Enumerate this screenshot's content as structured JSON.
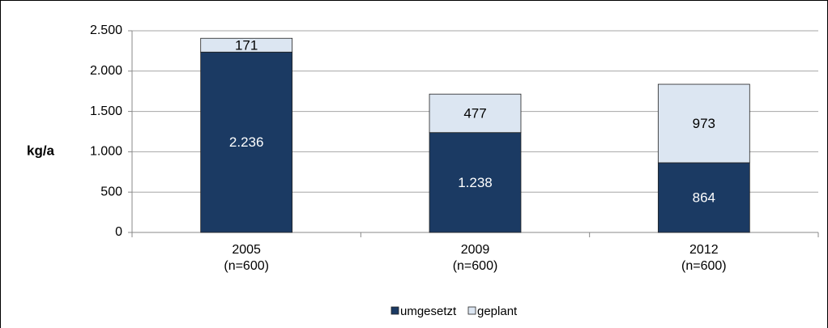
{
  "chart_data": {
    "type": "stacked_bar",
    "y_label": "kg/a",
    "categories": [
      "2005\n(n=600)",
      "2009\n(n=600)",
      "2012\n(n=600)"
    ],
    "series": [
      {
        "name": "umgesetzt",
        "color": "#1b3a63",
        "label_color": "#ffffff",
        "values": [
          2236,
          1238,
          864
        ],
        "value_labels": [
          "2.236",
          "1.238",
          "864"
        ]
      },
      {
        "name": "geplant",
        "color": "#dce6f2",
        "label_color": "#000000",
        "values": [
          171,
          477,
          973
        ],
        "value_labels": [
          "171",
          "477",
          "973"
        ]
      }
    ],
    "ylim": [
      0,
      2500
    ],
    "yticks": [
      0,
      500,
      {
        "value": 1000,
        "label": "1.000"
      },
      {
        "value": 1500,
        "label": "1.500"
      },
      {
        "value": 2000,
        "label": "2.000"
      },
      {
        "value": 2500,
        "label": "2.500"
      }
    ],
    "grid": true,
    "legend": "bottom"
  }
}
